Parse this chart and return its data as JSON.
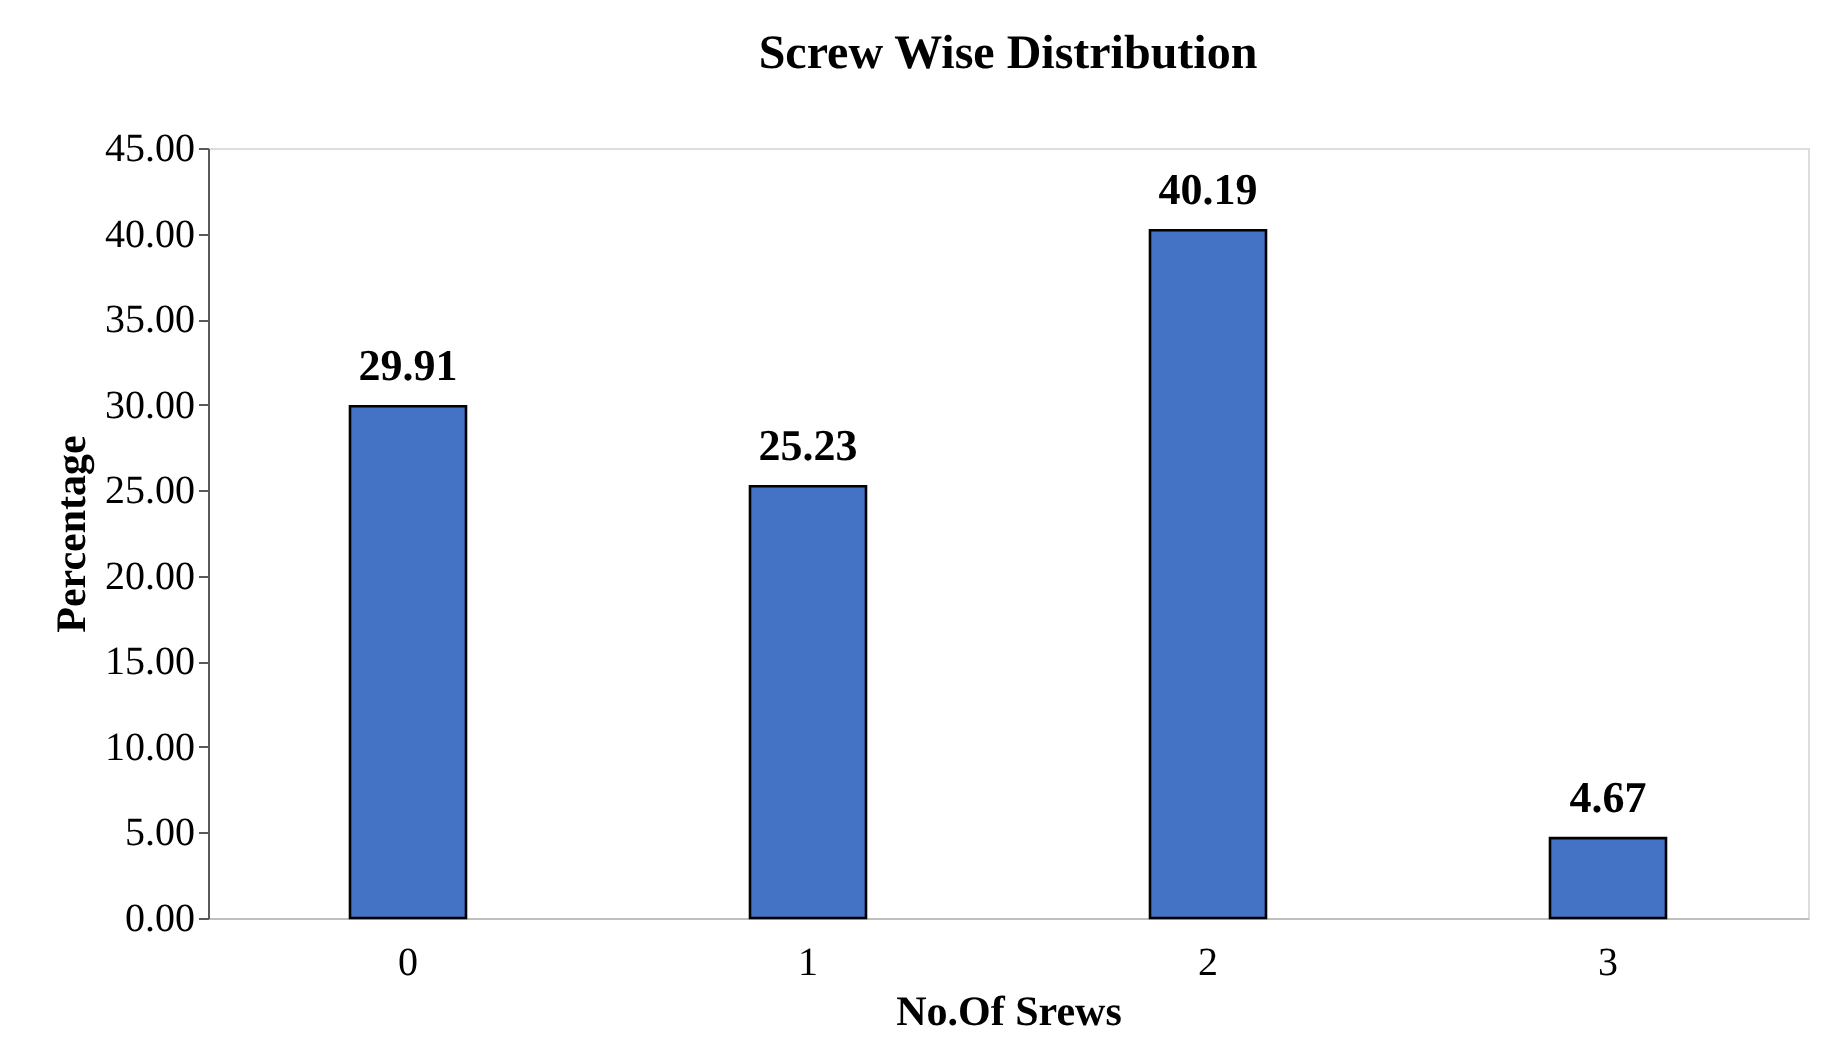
{
  "chart_data": {
    "type": "bar",
    "title": "Screw Wise Distribution",
    "xlabel": "No.Of Srews",
    "ylabel": "Percentage",
    "categories": [
      "0",
      "1",
      "2",
      "3"
    ],
    "values": [
      29.91,
      25.23,
      40.19,
      4.67
    ],
    "color": "#4472c4",
    "ylim": [
      0,
      45
    ],
    "yticks": [
      {
        "value": 0,
        "label": "0.00"
      },
      {
        "value": 5,
        "label": "5.00"
      },
      {
        "value": 10,
        "label": "10.00"
      },
      {
        "value": 15,
        "label": "15.00"
      },
      {
        "value": 20,
        "label": "20.00"
      },
      {
        "value": 25,
        "label": "25.00"
      },
      {
        "value": 30,
        "label": "30.00"
      },
      {
        "value": 35,
        "label": "35.00"
      },
      {
        "value": 40,
        "label": "40.00"
      },
      {
        "value": 45,
        "label": "45.00"
      }
    ],
    "data_labels": true,
    "grid": false
  }
}
